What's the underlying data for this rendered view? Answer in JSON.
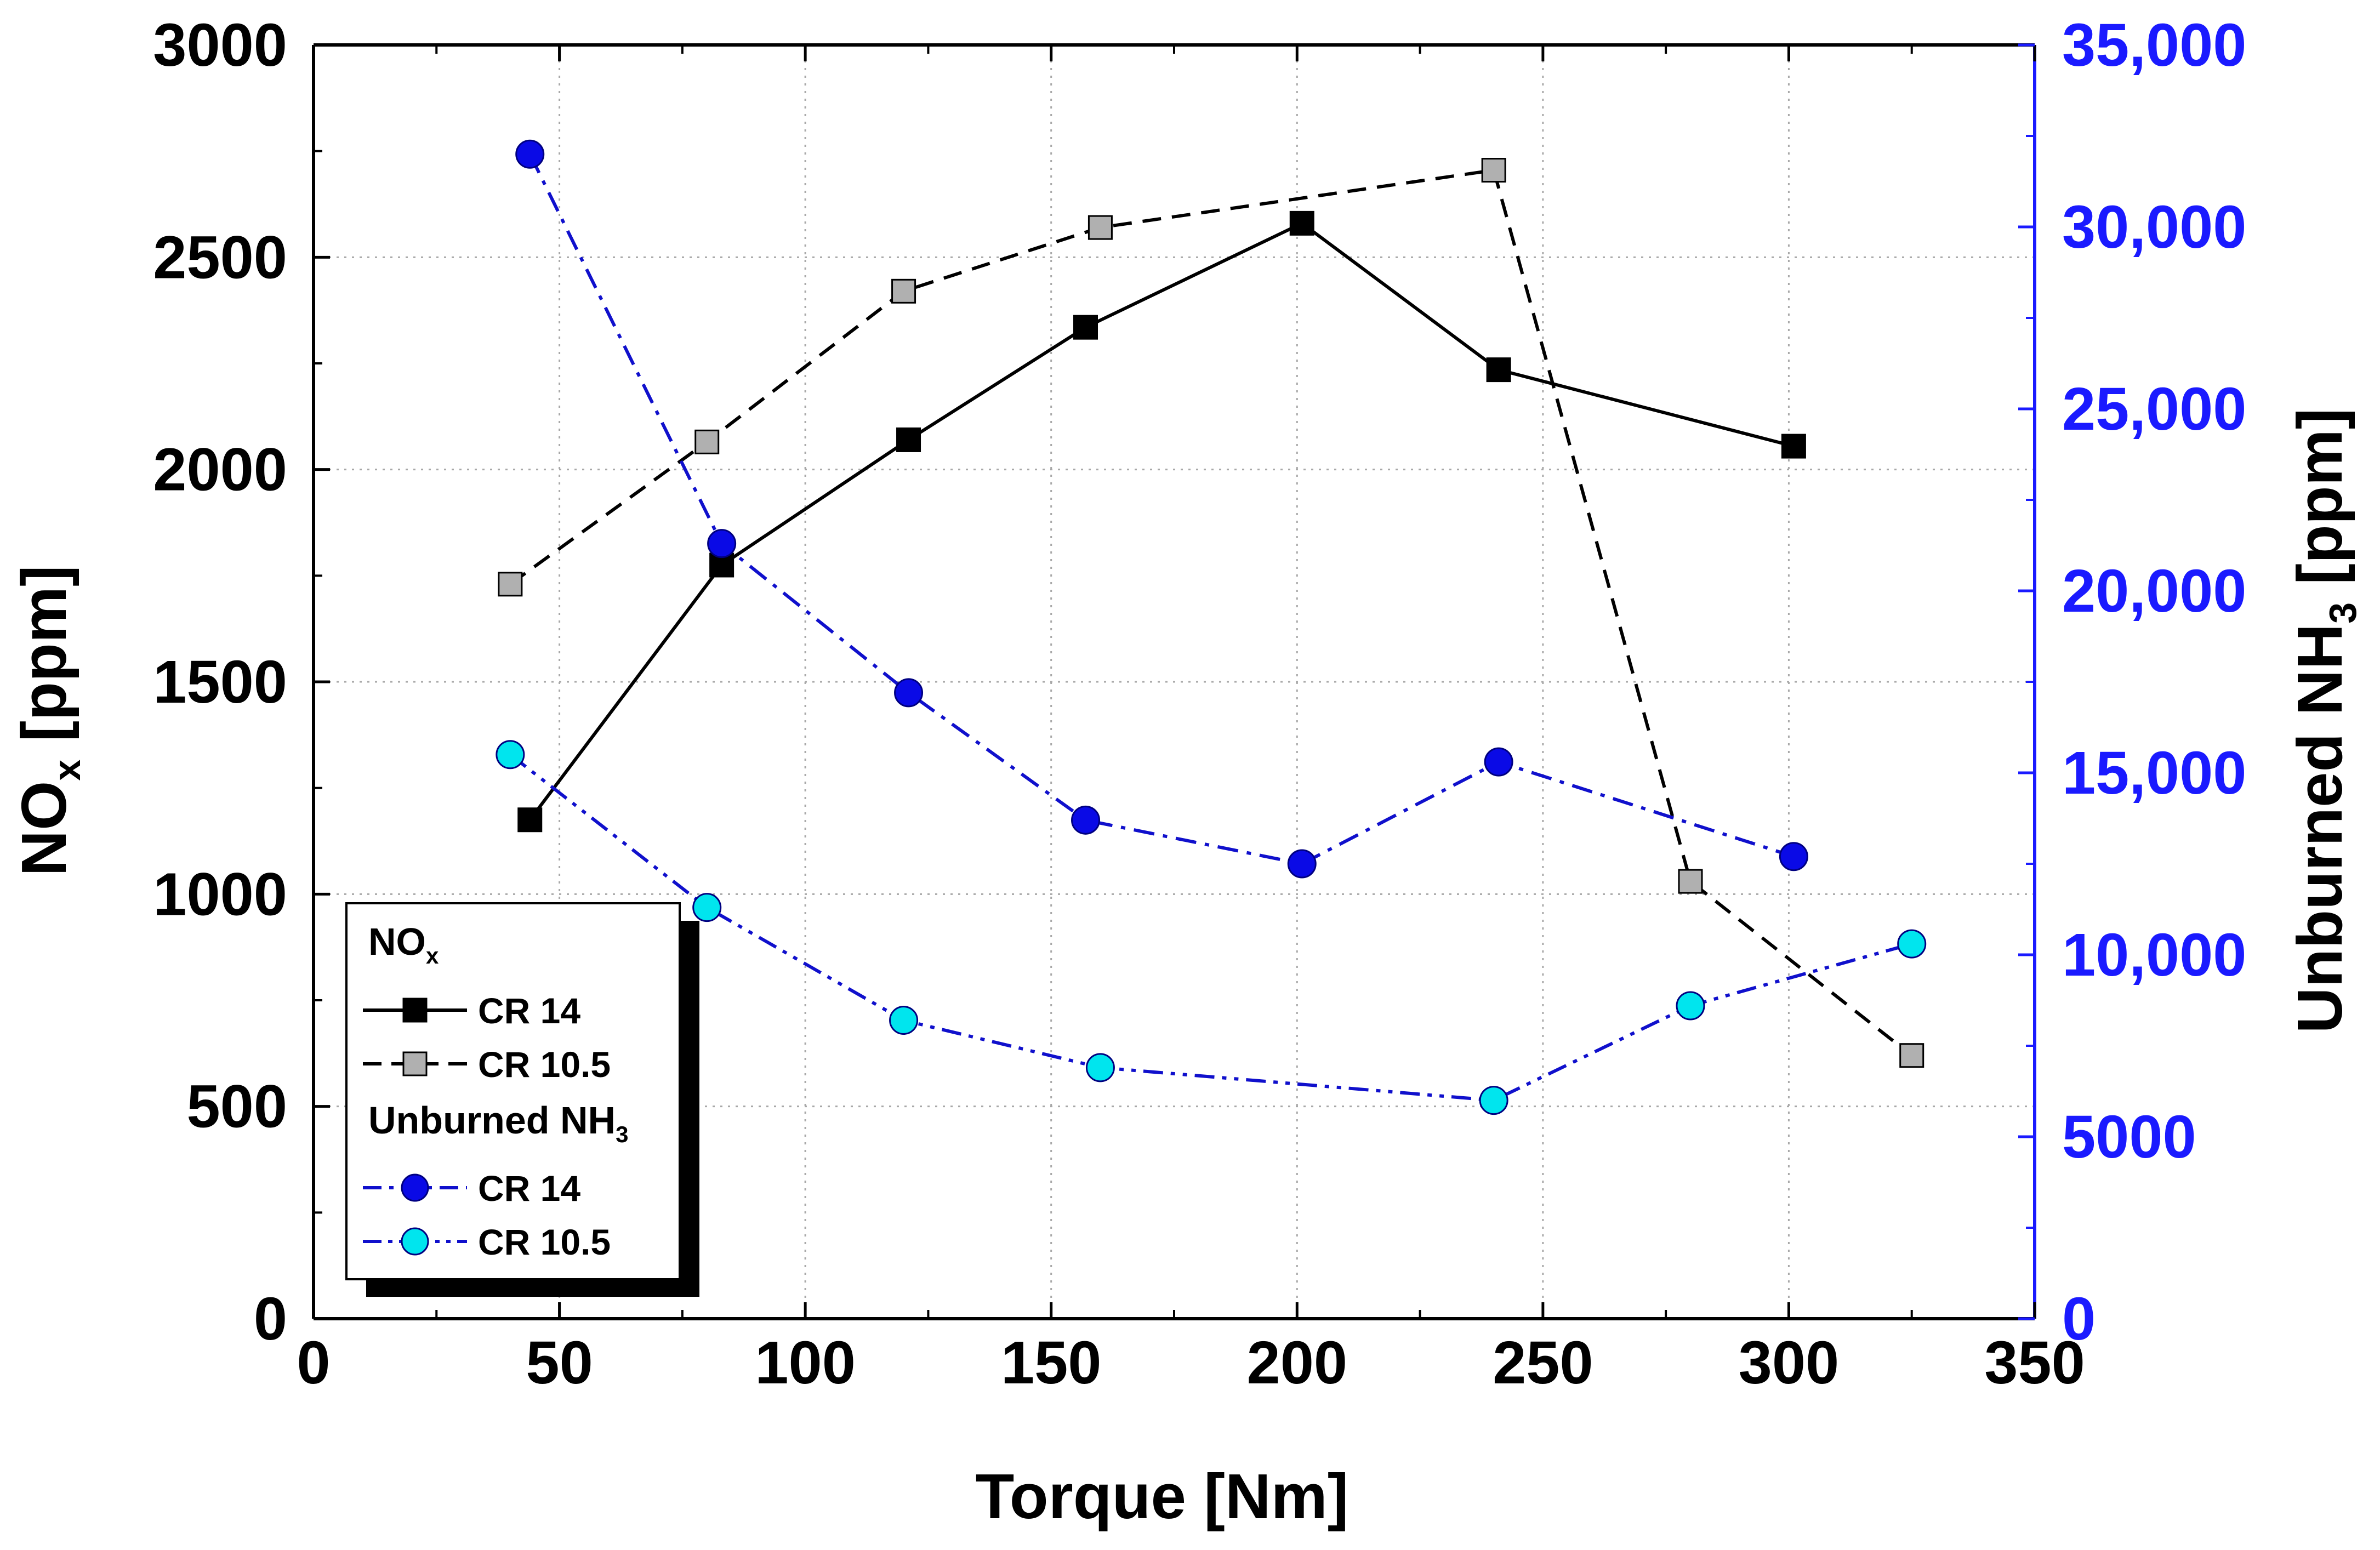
{
  "chart_data": {
    "type": "line",
    "title": "",
    "xlabel": "Torque [Nm]",
    "ylabel": {
      "main": "NO",
      "sub": "x",
      "unit": " [ppm]"
    },
    "y2label": {
      "main": "Unburned NH",
      "sub": "3",
      "unit": " [ppm]"
    },
    "xlim": [
      0,
      350
    ],
    "ylim": [
      0,
      3000
    ],
    "y2lim": [
      0,
      35000
    ],
    "x_ticks": [
      0,
      50,
      100,
      150,
      200,
      250,
      300,
      350
    ],
    "x_tick_labels": [
      "0",
      "50",
      "100",
      "150",
      "200",
      "250",
      "300",
      "350"
    ],
    "y_ticks": [
      0,
      500,
      1000,
      1500,
      2000,
      2500,
      3000
    ],
    "y_tick_labels": [
      "0",
      "500",
      "1000",
      "1500",
      "2000",
      "2500",
      "3000"
    ],
    "y2_ticks": [
      0,
      5000,
      10000,
      15000,
      20000,
      25000,
      30000,
      35000
    ],
    "y2_tick_labels": [
      "0",
      "5000",
      "10,000",
      "15,000",
      "20,000",
      "25,000",
      "30,000",
      "35,000"
    ],
    "grid": true,
    "series": [
      {
        "group": "NOx",
        "name": "CR 14",
        "axis": "left",
        "marker": "square",
        "line": "solid",
        "line_color": "#000000",
        "fill": "#000000",
        "stroke": "#000000",
        "x": [
          44,
          83,
          121,
          157,
          201,
          241,
          301
        ],
        "y": [
          1175,
          1775,
          2070,
          2335,
          2580,
          2235,
          2055
        ]
      },
      {
        "group": "NOx",
        "name": "CR 10.5",
        "axis": "left",
        "marker": "square",
        "line": "dashed",
        "line_color": "#000000",
        "fill": "#b0b0b0",
        "stroke": "#000000",
        "x": [
          40,
          80,
          120,
          160,
          240,
          280,
          325
        ],
        "y": [
          1730,
          2065,
          2420,
          2570,
          2705,
          1030,
          620
        ]
      },
      {
        "group": "Unburned NH3",
        "name": "CR 14",
        "axis": "right",
        "marker": "circle",
        "line": "dashdot",
        "line_color": "#1010cc",
        "fill": "#0a0ae6",
        "stroke": "#000080",
        "x": [
          44,
          83,
          121,
          157,
          201,
          241,
          301
        ],
        "y": [
          32000,
          21300,
          17200,
          13700,
          12500,
          15300,
          12700
        ]
      },
      {
        "group": "Unburned NH3",
        "name": "CR 10.5",
        "axis": "right",
        "marker": "circle",
        "line": "dashdotdot",
        "line_color": "#1010cc",
        "fill": "#00e5ee",
        "stroke": "#000080",
        "x": [
          40,
          80,
          120,
          160,
          240,
          280,
          325
        ],
        "y": [
          15500,
          11300,
          8200,
          6900,
          6000,
          8600,
          10300
        ]
      }
    ],
    "legend": {
      "position": "bottom-left",
      "groups": [
        {
          "title": "NO",
          "sub": "x",
          "series_index": [
            0,
            1
          ]
        },
        {
          "title": "Unburned NH",
          "sub": "3",
          "series_index": [
            2,
            3
          ]
        }
      ]
    },
    "colors": {
      "right_axis": "#1a1aff",
      "left_axis": "#000000",
      "grid": "#a8a8a8"
    }
  }
}
